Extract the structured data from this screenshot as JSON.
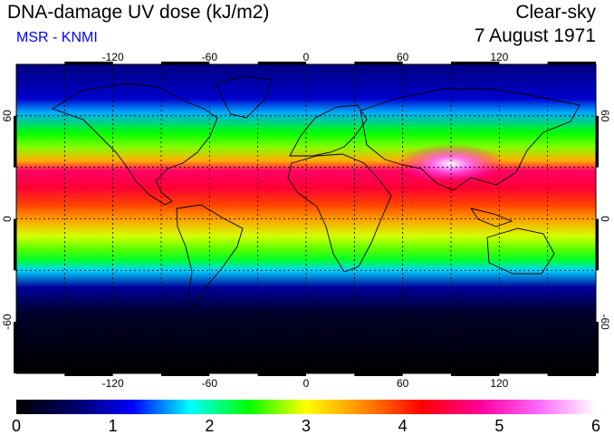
{
  "header": {
    "title": "DNA-damage UV dose (kJ/m2)",
    "subtitle": "MSR - KNMI",
    "mode": "Clear-sky",
    "date": "7 August 1971"
  },
  "map": {
    "projection": "equirectangular",
    "lon_range": [
      -180,
      180
    ],
    "lat_range": [
      -90,
      90
    ],
    "grid": true,
    "lon_ticks": [
      -120,
      -60,
      0,
      60,
      120
    ],
    "lon_tick_labels": [
      "-120",
      "-60",
      "0",
      "60",
      "120"
    ],
    "lat_ticks": [
      60,
      0,
      -60
    ],
    "lat_tick_labels": [
      "60",
      "0",
      "-60"
    ],
    "field_profile_lat": [
      90,
      70,
      62,
      50,
      42,
      34,
      28,
      18,
      8,
      0,
      -10,
      -18,
      -24,
      -30,
      -40,
      -55,
      -90
    ],
    "field_profile_value": [
      0.7,
      1.0,
      1.6,
      2.4,
      2.7,
      3.4,
      4.6,
      4.4,
      3.9,
      3.5,
      2.9,
      2.6,
      2.3,
      1.7,
      0.8,
      0.25,
      0.0
    ],
    "hotspot": {
      "lon": 90,
      "lat": 32,
      "value": 5.8
    }
  },
  "colorbar": {
    "min": 0,
    "max": 6,
    "labels": [
      "0",
      "1",
      "2",
      "3",
      "4",
      "5",
      "6"
    ],
    "stops": [
      "#000000",
      "#000066",
      "#0000ff",
      "#00ffff",
      "#00ff00",
      "#ffff00",
      "#ff8800",
      "#ff0000",
      "#ff0099",
      "#ff66ff",
      "#ffffff"
    ]
  }
}
